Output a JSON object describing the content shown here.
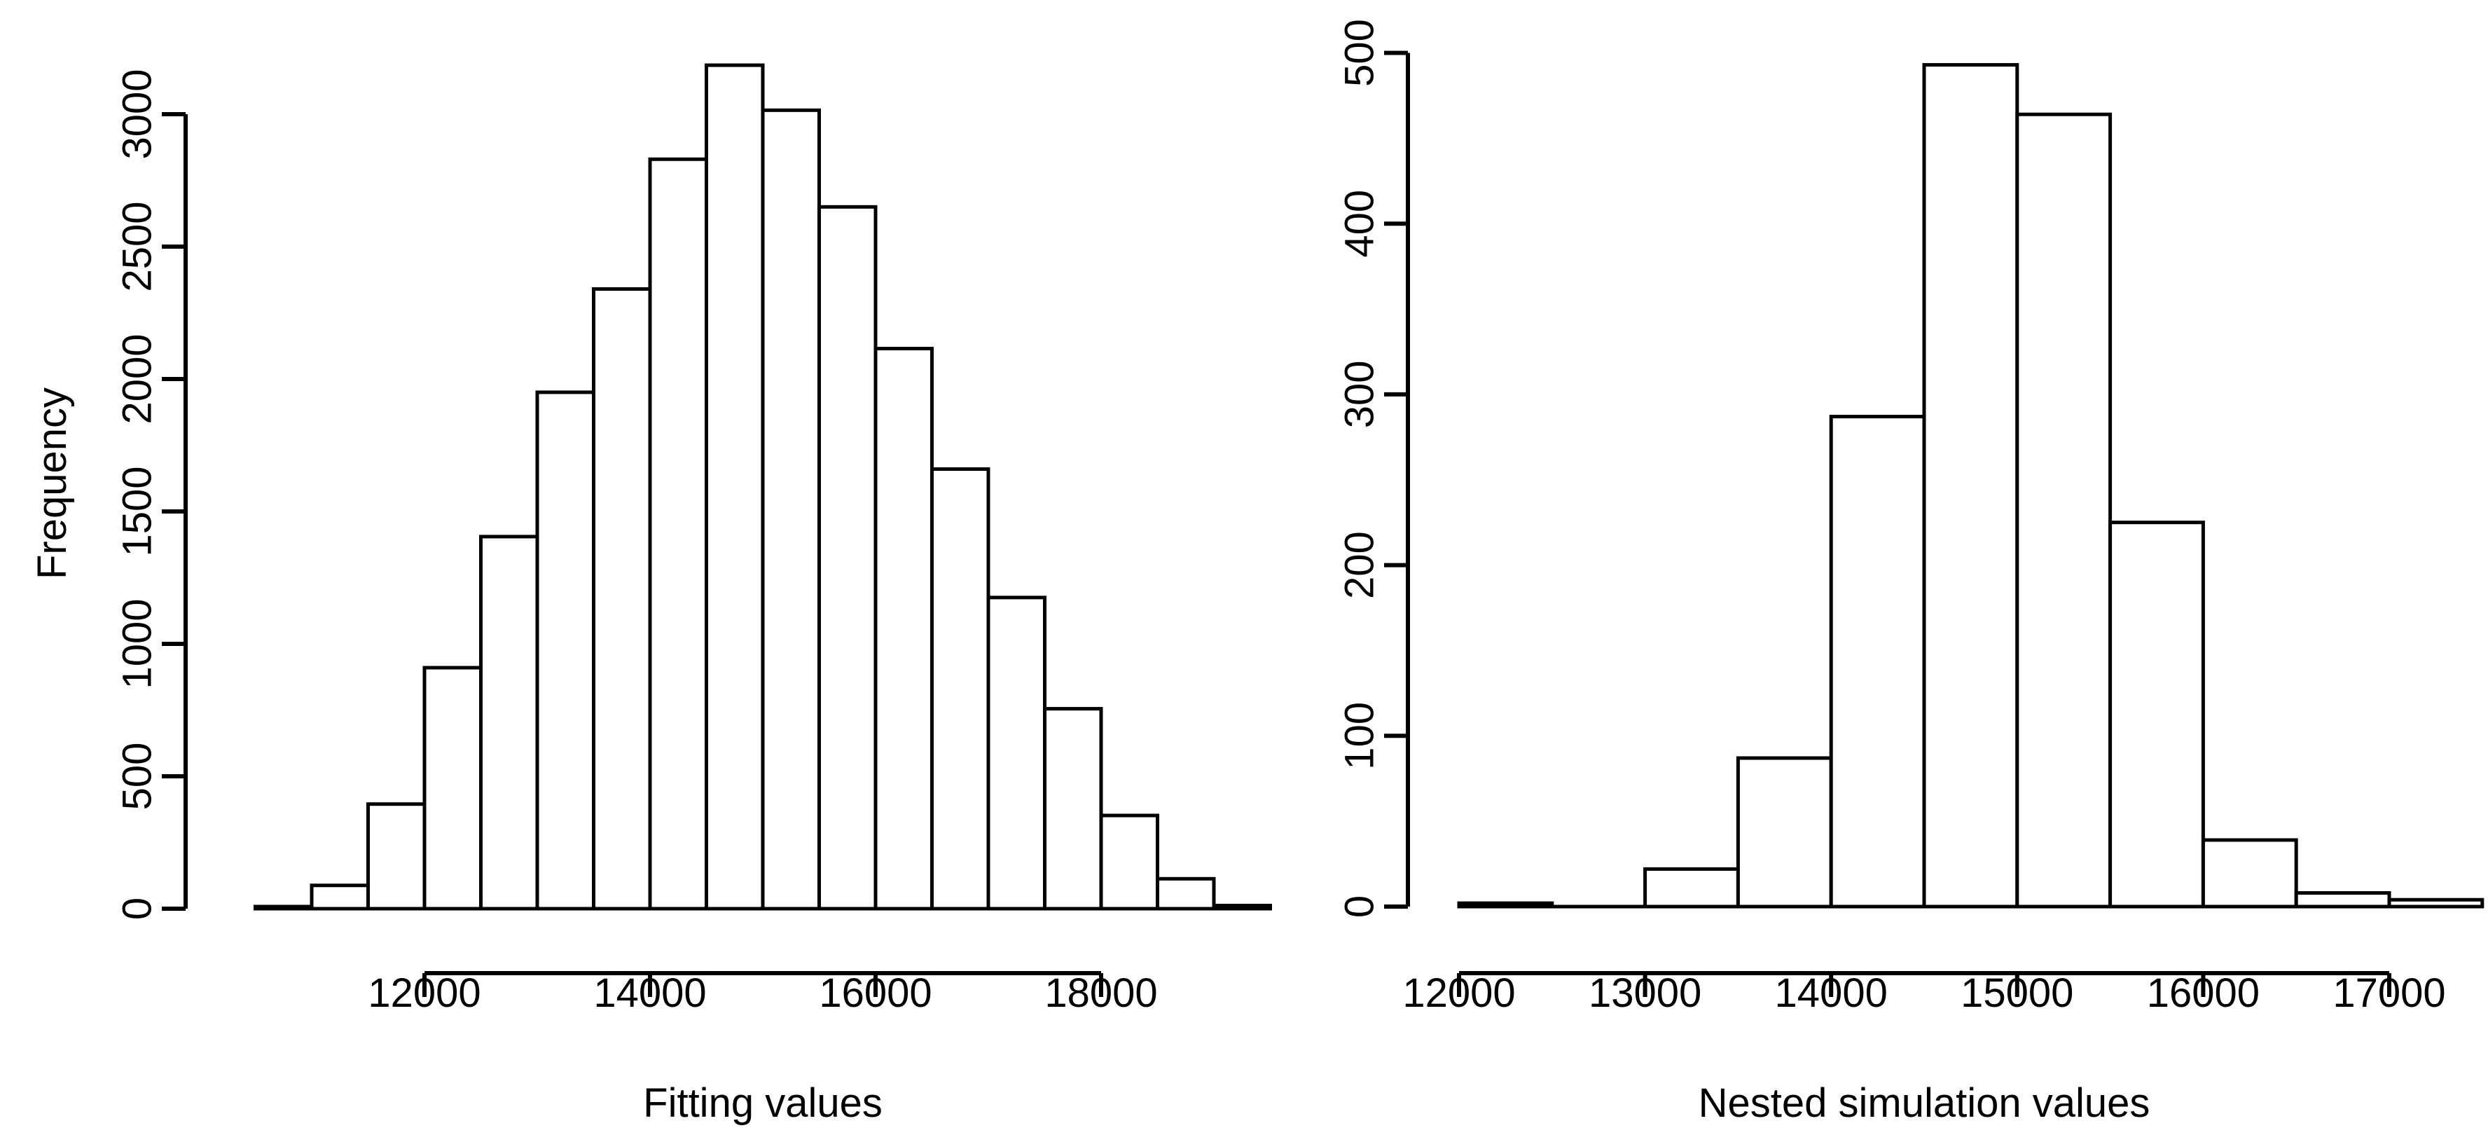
{
  "figure": {
    "background": "#ffffff",
    "stroke_color": "#000000",
    "text_color": "#000000"
  },
  "chart_data": [
    {
      "type": "bar",
      "subtype": "histogram",
      "title": "",
      "xlabel": "Fitting values",
      "ylabel": "Frequency",
      "bin_start": 10500,
      "bin_width": 500,
      "values": [
        8,
        88,
        395,
        910,
        1405,
        1950,
        2340,
        2830,
        3185,
        3015,
        2650,
        2115,
        1660,
        1175,
        755,
        352,
        113,
        12
      ],
      "x_ticks": [
        12000,
        14000,
        16000,
        18000
      ],
      "y_ticks": [
        0,
        500,
        1000,
        1500,
        2000,
        2500,
        3000
      ],
      "xlim": [
        10500,
        19500
      ],
      "ylim": [
        0,
        3200
      ],
      "grid": false,
      "legend": "none",
      "bar_fill": "#ffffff",
      "bar_stroke": "#000000"
    },
    {
      "type": "bar",
      "subtype": "histogram",
      "title": "",
      "xlabel": "Nested simulation values",
      "ylabel": "",
      "bin_start": 12000,
      "bin_width": 500,
      "values": [
        2,
        0,
        22,
        87,
        287,
        493,
        464,
        225,
        39,
        8,
        4
      ],
      "x_ticks": [
        12000,
        13000,
        14000,
        15000,
        16000,
        17000
      ],
      "y_ticks": [
        0,
        100,
        200,
        300,
        400,
        500
      ],
      "xlim": [
        12000,
        17500
      ],
      "ylim": [
        0,
        500
      ],
      "grid": false,
      "legend": "none",
      "bar_fill": "#ffffff",
      "bar_stroke": "#000000"
    }
  ]
}
